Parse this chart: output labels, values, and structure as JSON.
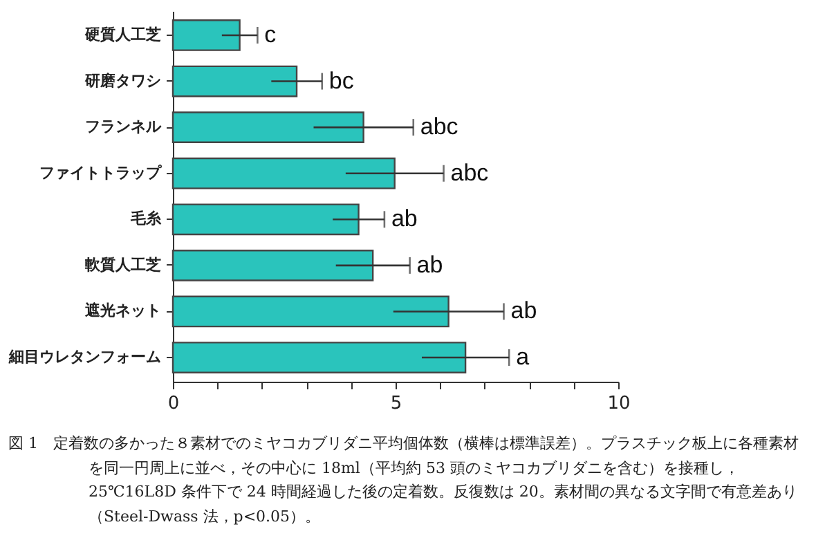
{
  "chart_data": {
    "type": "bar",
    "orientation": "horizontal",
    "categories": [
      "硬質人工芝",
      "研磨タワシ",
      "フランネル",
      "ファイトトラップ",
      "毛糸",
      "軟質人工芝",
      "遮光ネット",
      "細目ウレタンフォーム"
    ],
    "values": [
      1.5,
      2.78,
      4.28,
      4.98,
      4.17,
      4.49,
      6.19,
      6.57
    ],
    "errors": [
      0.4,
      0.57,
      1.12,
      1.1,
      0.58,
      0.83,
      1.24,
      0.98
    ],
    "value_labels": [
      "c",
      "bc",
      "abc",
      "abc",
      "ab",
      "ab",
      "ab",
      "a"
    ],
    "color": "#2ac4bc",
    "grid": false,
    "xlim": [
      0,
      10
    ],
    "xticks": [
      0,
      {
        "value": 1,
        "label": null
      },
      {
        "value": 2,
        "label": null
      },
      {
        "value": 3,
        "label": null
      },
      {
        "value": 4,
        "label": null
      },
      5,
      {
        "value": 6,
        "label": null
      },
      {
        "value": 7,
        "label": null
      },
      {
        "value": 8,
        "label": null
      },
      {
        "value": 9,
        "label": null
      },
      10
    ],
    "annotations": [
      "図 1　定着数の多かった８素材でのミヤコカブリダニ平均個体数（横棒は標準誤差）。プラスチック板上に各種素材を同一円周上に並べ，その中心に 18ml（平均約 53 頭のミヤコカブリダニを含む）を接種し，25℃16L8D 条件下で 24 時間経過した後の定着数。反復数は 20。素材間の異なる文字間で有意差あり（Steel-Dwass 法，p<0.05）。"
    ]
  }
}
